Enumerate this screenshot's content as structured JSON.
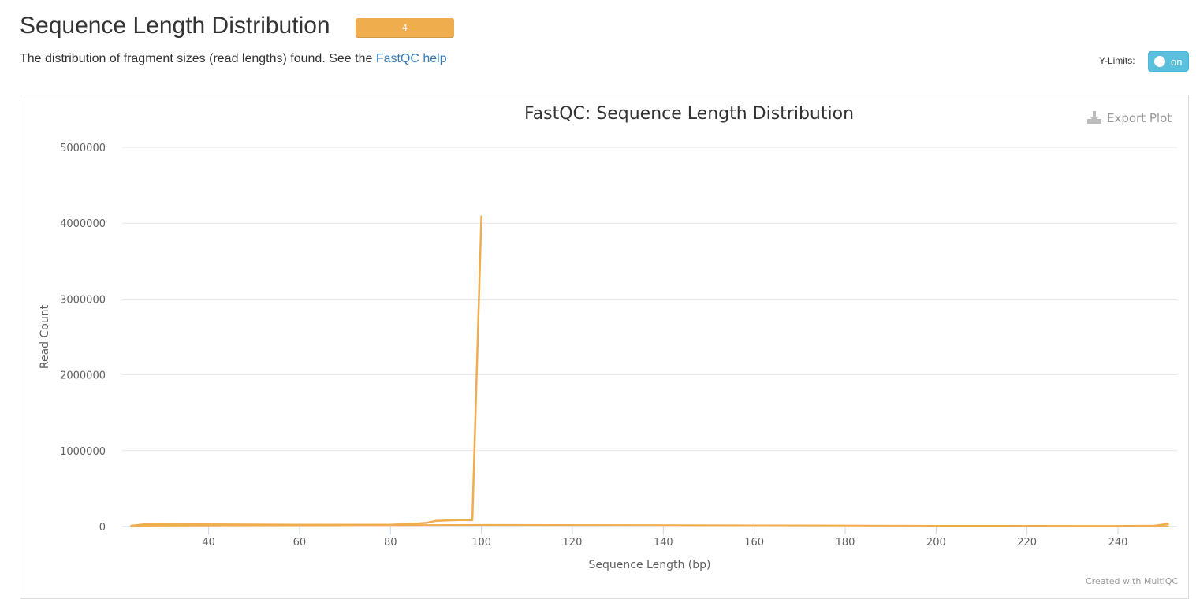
{
  "header": {
    "title": "Sequence Length Distribution",
    "badge": "4",
    "description_prefix": "The distribution of fragment sizes (read lengths) found. See the ",
    "help_link": "FastQC help"
  },
  "controls": {
    "ylimits_label": "Y-Limits:",
    "toggle_text": "on"
  },
  "export": {
    "label": "Export Plot",
    "icon": "download-icon"
  },
  "credit": "Created with MultiQC",
  "colors": {
    "series": "#f0ad4e",
    "badge": "#f0ad4e",
    "toggle": "#5bc0de",
    "link": "#337ab7"
  },
  "chart_data": {
    "type": "line",
    "title": "FastQC: Sequence Length Distribution",
    "xlabel": "Sequence Length (bp)",
    "ylabel": "Read Count",
    "xlim": [
      21,
      253
    ],
    "ylim": [
      0,
      5000000
    ],
    "xticks": [
      40,
      60,
      80,
      100,
      120,
      140,
      160,
      180,
      200,
      220,
      240
    ],
    "yticks": [
      0,
      1000000,
      2000000,
      3000000,
      4000000,
      5000000
    ],
    "grid": true,
    "series": [
      {
        "x": [
          23,
          26,
          40,
          60,
          80,
          85,
          88,
          90,
          95,
          97,
          98,
          100
        ],
        "y": [
          10000,
          30000,
          28000,
          24000,
          24000,
          35000,
          50000,
          75000,
          85000,
          85000,
          85000,
          4090000
        ]
      },
      {
        "x": [
          26,
          40,
          60,
          80,
          100,
          150,
          200,
          240,
          248,
          251
        ],
        "y": [
          18000,
          15000,
          15000,
          15000,
          20000,
          15000,
          8000,
          6000,
          10000,
          35000
        ]
      },
      {
        "x": [
          23,
          40,
          80,
          100,
          160,
          200,
          251
        ],
        "y": [
          5000,
          12000,
          14000,
          16000,
          14000,
          5000,
          4000
        ]
      },
      {
        "x": [
          23,
          60,
          100,
          140,
          200,
          251
        ],
        "y": [
          2000,
          8000,
          12000,
          10000,
          3000,
          2000
        ]
      }
    ]
  }
}
